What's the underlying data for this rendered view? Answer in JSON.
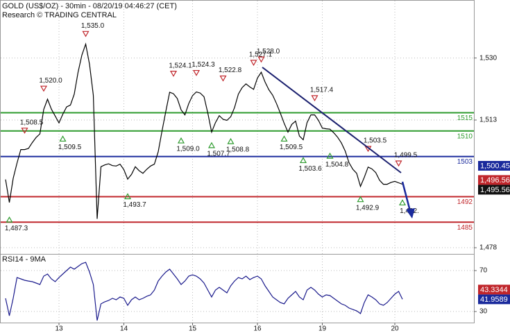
{
  "chart_data": [
    {
      "type": "line",
      "title": "GOLD (US$/OZ) - 30min - 08/20/19 04:46:27 (CET)",
      "subtitle": "Research © TRADING CENTRAL",
      "categories": [
        null,
        null,
        null,
        null,
        null,
        null,
        null,
        null,
        null,
        null,
        null,
        null,
        null,
        null,
        "13",
        null,
        null,
        null,
        null,
        null,
        null,
        null,
        null,
        null,
        null,
        null,
        null,
        null,
        null,
        null,
        null,
        "14",
        null,
        null,
        null,
        null,
        null,
        null,
        null,
        null,
        null,
        null,
        null,
        null,
        null,
        null,
        null,
        null,
        null,
        "15",
        null,
        null,
        null,
        null,
        null,
        null,
        null,
        null,
        null,
        null,
        null,
        null,
        null,
        null,
        null,
        null,
        "16",
        null,
        null,
        null,
        null,
        null,
        null,
        null,
        null,
        null,
        null,
        null,
        null,
        null,
        null,
        null,
        null,
        "19",
        null,
        null,
        null,
        null,
        null,
        null,
        null,
        null,
        null,
        null,
        null,
        null,
        null,
        null,
        null,
        null,
        null,
        null,
        "20",
        null,
        null
      ],
      "series": [
        {
          "color": "#000000",
          "values": [
            1496.7,
            1490.4,
            1497.0,
            1501.2,
            1504.9,
            1504.9,
            1505.2,
            1506.8,
            1508.2,
            1509.2,
            1515.9,
            1518.7,
            1516.0,
            1514.1,
            1512.2,
            1514.6,
            1516.6,
            1517.1,
            1520.1,
            1526.1,
            1530.8,
            1533.8,
            1528.3,
            1519.8,
            1485.9,
            1500.2,
            1500.7,
            1501.0,
            1500.5,
            1500.4,
            1500.9,
            1499.4,
            1496.8,
            1498.1,
            1500.2,
            1499.1,
            1498.4,
            1499.5,
            1500.4,
            1500.9,
            1504.3,
            1510.0,
            1515.4,
            1520.6,
            1520.2,
            1518.9,
            1515.8,
            1514.4,
            1517.5,
            1519.7,
            1520.7,
            1520.4,
            1519.4,
            1514.9,
            1509.7,
            1512.3,
            1514.2,
            1513.2,
            1512.9,
            1513.9,
            1516.4,
            1520.1,
            1521.9,
            1522.9,
            1522.1,
            1521.4,
            1524.5,
            1526.1,
            1523.4,
            1521.3,
            1519.8,
            1517.5,
            1514.9,
            1512.1,
            1509.7,
            1511.8,
            1512.7,
            1508.6,
            1507.6,
            1512.3,
            1514.4,
            1514.4,
            1512.9,
            1510.8,
            1510.6,
            1510.5,
            1509.5,
            1508.3,
            1506.7,
            1504.5,
            1501.3,
            1499.5,
            1498.4,
            1494.8,
            1497.3,
            1500.1,
            1499.6,
            1498.6,
            1496.5,
            1495.4,
            1495.4,
            1495.9,
            1496.2,
            1495.8,
            1495.4
          ]
        }
      ],
      "ylim": [
        1476.3,
        1545.9
      ],
      "yticks": [
        {
          "value": 1478,
          "label": "1,478"
        },
        {
          "value": 1513,
          "label": "1,513"
        },
        {
          "value": 1530,
          "label": "1,530"
        }
      ],
      "grid": true,
      "levels": [
        {
          "value": 1515,
          "color": "#2e9b2e"
        },
        {
          "value": 1510,
          "color": "#2e9b2e"
        },
        {
          "value": 1503,
          "color": "#1a2a9c"
        },
        {
          "value": 1492,
          "color": "#c0262b"
        },
        {
          "value": 1485,
          "color": "#c0262b"
        }
      ],
      "pivots": [
        {
          "label": "1,487.3",
          "value": 1487.3,
          "index": 1,
          "kind": "low"
        },
        {
          "label": "1,508.5",
          "value": 1508.5,
          "index": 5,
          "kind": "high"
        },
        {
          "label": "1,520.0",
          "value": 1520.0,
          "index": 10,
          "kind": "high"
        },
        {
          "label": "1,509.5",
          "value": 1509.5,
          "index": 15,
          "kind": "low"
        },
        {
          "label": "1,535.0",
          "value": 1535.0,
          "index": 21,
          "kind": "high"
        },
        {
          "label": "1,493.7",
          "value": 1493.7,
          "index": 32,
          "kind": "low"
        },
        {
          "label": "1,524.1",
          "value": 1524.1,
          "index": 44,
          "kind": "high"
        },
        {
          "label": "1,509.0",
          "value": 1509.0,
          "index": 46,
          "kind": "low"
        },
        {
          "label": "1,524.3",
          "value": 1524.3,
          "index": 50,
          "kind": "high"
        },
        {
          "label": "1,507.7",
          "value": 1507.7,
          "index": 54,
          "kind": "low"
        },
        {
          "label": "1,522.8",
          "value": 1522.8,
          "index": 57,
          "kind": "high"
        },
        {
          "label": "1,508.8",
          "value": 1508.8,
          "index": 59,
          "kind": "low"
        },
        {
          "label": "1,527.1",
          "value": 1527.1,
          "index": 65,
          "kind": "high"
        },
        {
          "label": "1,528.0",
          "value": 1528.0,
          "index": 67,
          "kind": "high"
        },
        {
          "label": "1,509.5",
          "value": 1509.5,
          "index": 73,
          "kind": "low"
        },
        {
          "label": "1,503.6",
          "value": 1503.6,
          "index": 78,
          "kind": "low"
        },
        {
          "label": "1,517.4",
          "value": 1517.4,
          "index": 81,
          "kind": "high"
        },
        {
          "label": "1,504.8",
          "value": 1504.8,
          "index": 85,
          "kind": "low"
        },
        {
          "label": "1,492.9",
          "value": 1492.9,
          "index": 93,
          "kind": "low"
        },
        {
          "label": "1,503.5",
          "value": 1503.5,
          "index": 95,
          "kind": "high"
        },
        {
          "label": "1,499.5",
          "value": 1499.5,
          "index": 103,
          "kind": "high"
        },
        {
          "label": "1,492.",
          "value": 1492,
          "index": 104,
          "kind": "low"
        }
      ],
      "price_tags": [
        {
          "label": "1,500.45",
          "value": 1500.45,
          "color": "#1a2a9c"
        },
        {
          "label": "1,496.56",
          "value": 1496.56,
          "color": "#c0262b"
        },
        {
          "label": "1,495.56",
          "value": 1495.56,
          "color": "#111111"
        }
      ]
    },
    {
      "type": "line",
      "title": "RSI14 - 9MA",
      "series": [
        {
          "color": "#1a1a8c",
          "values": [
            42.9,
            25.9,
            42.9,
            63.2,
            61.9,
            60.5,
            59.8,
            59.2,
            57.8,
            56.4,
            64.6,
            66.6,
            61.9,
            59.2,
            63.2,
            66.6,
            70.0,
            73.4,
            71.4,
            74.1,
            76.8,
            78.1,
            68.6,
            56.4,
            21.2,
            37.5,
            39.5,
            40.8,
            42.9,
            41.5,
            44.2,
            42.9,
            36.1,
            41.5,
            44.2,
            41.5,
            42.9,
            44.9,
            46.3,
            51.0,
            59.8,
            64.6,
            68.6,
            71.4,
            66.6,
            61.9,
            56.4,
            59.8,
            64.6,
            65.9,
            64.6,
            61.9,
            57.8,
            51.0,
            44.2,
            51.0,
            53.7,
            51.0,
            48.3,
            55.1,
            59.8,
            63.2,
            61.9,
            64.6,
            61.2,
            63.2,
            64.6,
            61.9,
            55.1,
            49.7,
            44.2,
            41.5,
            38.8,
            37.5,
            42.9,
            46.3,
            49.7,
            44.2,
            41.5,
            51.0,
            53.7,
            51.0,
            47.0,
            44.2,
            46.3,
            45.6,
            42.9,
            40.2,
            37.5,
            36.1,
            33.4,
            32.0,
            30.7,
            28.0,
            38.8,
            46.3,
            44.2,
            41.5,
            37.5,
            36.1,
            38.8,
            42.9,
            47.0,
            49.7,
            42.0
          ]
        }
      ],
      "ylim": [
        19.2,
        85.6
      ],
      "yticks": [
        30,
        70
      ],
      "grid": true,
      "value_tags": [
        {
          "label": "43.3344",
          "value": 43.3344,
          "color": "#c0262b"
        },
        {
          "label": "41.9589",
          "value": 41.9589,
          "color": "#1a2a9c"
        }
      ]
    }
  ]
}
